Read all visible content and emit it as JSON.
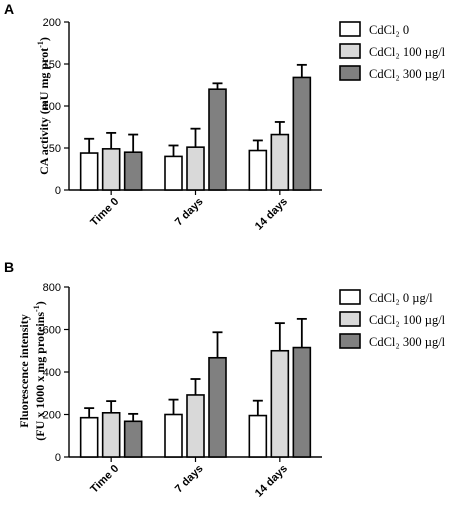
{
  "chart_data": [
    {
      "type": "bar",
      "panel": "A",
      "categories": [
        "Time 0",
        "7 days",
        "14 days"
      ],
      "ylabel_main": "CA activity (mU mg prot",
      "ylabel_sup": "-1",
      "ylabel_end": ")",
      "ylim": [
        0,
        200
      ],
      "yticks": [
        0,
        50,
        100,
        150,
        200
      ],
      "series": [
        {
          "name": "CdCl₂ 0",
          "color": "#ffffff",
          "values": [
            44,
            40,
            47
          ],
          "errors": [
            17,
            13,
            12
          ]
        },
        {
          "name": "CdCl₂ 100 µg/l",
          "color": "#d9d9d9",
          "values": [
            49,
            51,
            66
          ],
          "errors": [
            19,
            22,
            15
          ]
        },
        {
          "name": "CdCl₂ 300 µg/l",
          "color": "#808080",
          "values": [
            45,
            120,
            134
          ],
          "errors": [
            21,
            7,
            15
          ]
        }
      ]
    },
    {
      "type": "bar",
      "panel": "B",
      "categories": [
        "Time 0",
        "7 days",
        "14 days"
      ],
      "ylabel_line1": "Fluorescence intensity",
      "ylabel_line2_main": "(FU x 1000 x mg proteins",
      "ylabel_line2_sup": "-1",
      "ylabel_line2_end": ")",
      "ylim": [
        0,
        800
      ],
      "yticks": [
        0,
        200,
        400,
        600,
        800
      ],
      "series": [
        {
          "name": "CdCl₂ 0 µg/l",
          "color": "#ffffff",
          "values": [
            185,
            200,
            195
          ],
          "errors": [
            45,
            70,
            70
          ]
        },
        {
          "name": "CdCl₂ 100 µg/l",
          "color": "#d9d9d9",
          "values": [
            208,
            292,
            500
          ],
          "errors": [
            55,
            75,
            130
          ]
        },
        {
          "name": "CdCl₂ 300 µg/l",
          "color": "#808080",
          "values": [
            168,
            467,
            515
          ],
          "errors": [
            35,
            120,
            135
          ]
        }
      ]
    }
  ]
}
